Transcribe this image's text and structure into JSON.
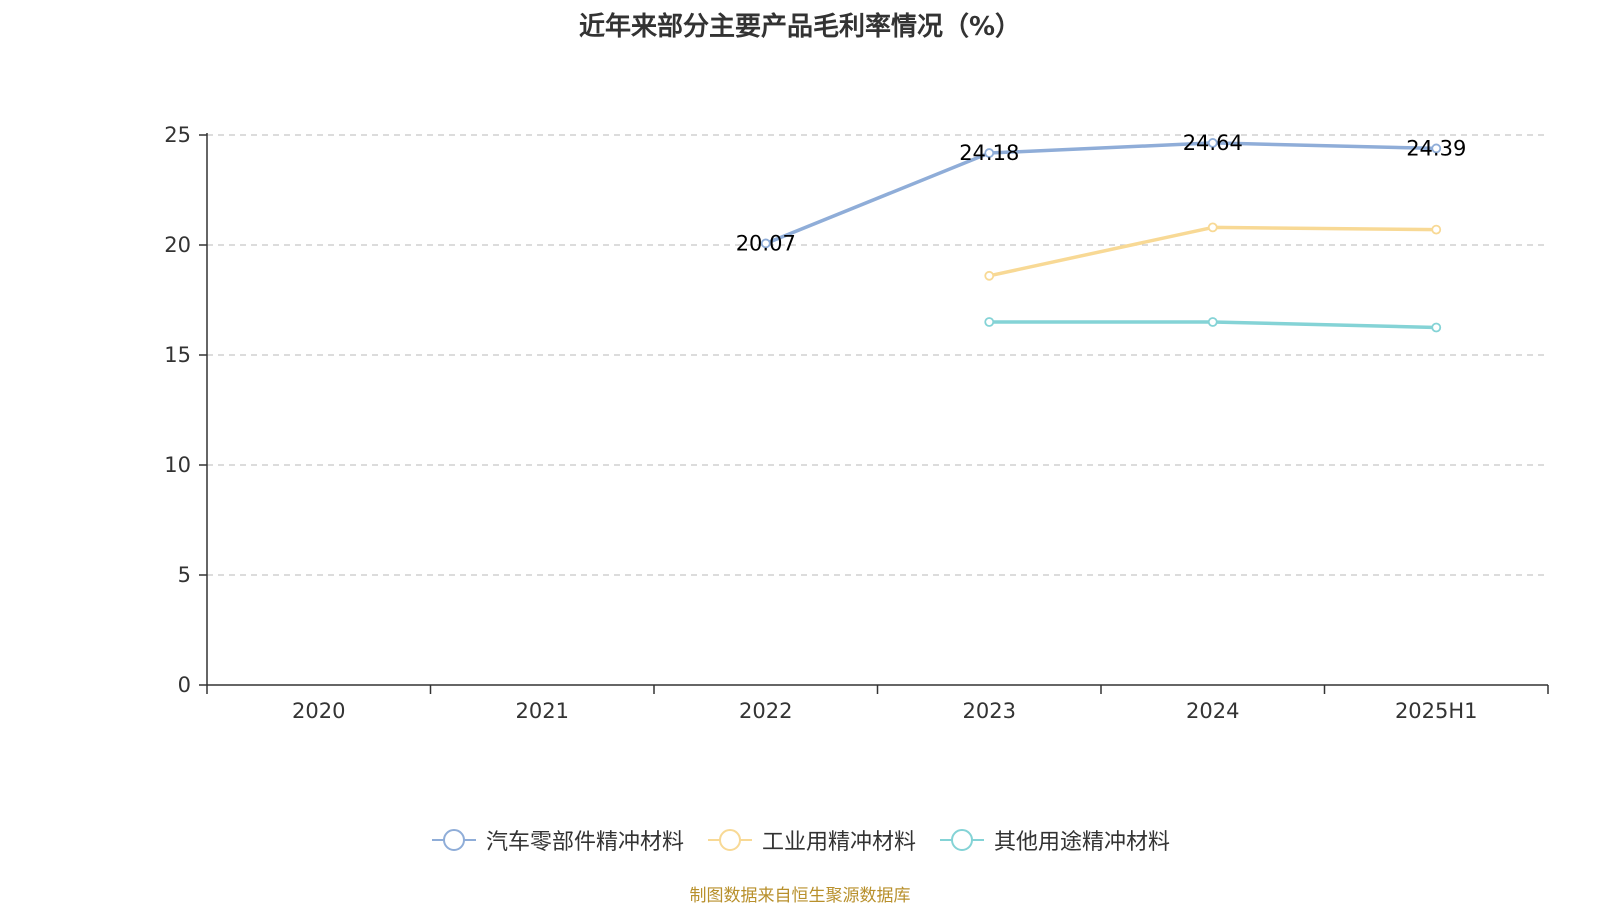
{
  "chart_data": {
    "type": "line",
    "title": "近年来部分主要产品毛利率情况（%）",
    "categories": [
      "2020",
      "2021",
      "2022",
      "2023",
      "2024",
      "2025H1"
    ],
    "y_ticks": [
      "0",
      "5",
      "10",
      "15",
      "20",
      "25"
    ],
    "ylim": [
      0,
      25
    ],
    "grid": "horizontal dashed",
    "legend_position": "bottom-center",
    "series": [
      {
        "name": "汽车零部件精冲材料",
        "color": "#8fadd8",
        "values": [
          null,
          null,
          20.07,
          24.18,
          24.64,
          24.39
        ],
        "labels": [
          "",
          "",
          "20.07",
          "24.18",
          "24.64",
          "24.39"
        ]
      },
      {
        "name": "工业用精冲材料",
        "color": "#f8d995",
        "values": [
          null,
          null,
          null,
          18.6,
          20.8,
          20.7
        ],
        "labels": [
          "",
          "",
          "",
          "",
          "",
          ""
        ]
      },
      {
        "name": "其他用途精冲材料",
        "color": "#84d3d6",
        "values": [
          null,
          null,
          null,
          16.5,
          16.5,
          16.25
        ],
        "labels": [
          "",
          "",
          "",
          "",
          "",
          ""
        ]
      }
    ]
  },
  "footer": {
    "source": "制图数据来自恒生聚源数据库"
  }
}
